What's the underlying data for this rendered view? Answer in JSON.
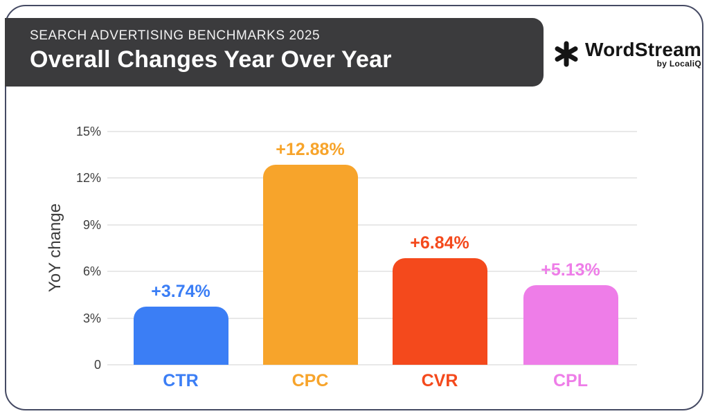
{
  "header": {
    "kicker": "SEARCH ADVERTISING BENCHMARKS 2025",
    "title": "Overall Changes Year Over Year"
  },
  "logo": {
    "icon": "asterisk-icon",
    "brand": "WordStream",
    "byline": "by LocaliQ"
  },
  "chart_data": {
    "type": "bar",
    "categories": [
      "CTR",
      "CPC",
      "CVR",
      "CPL"
    ],
    "values": [
      3.74,
      12.88,
      6.84,
      5.13
    ],
    "value_labels": [
      "+3.74%",
      "+12.88%",
      "+6.84%",
      "+5.13%"
    ],
    "bar_colors": [
      "#3b7ef5",
      "#f7a42b",
      "#f4491c",
      "#ee7de8"
    ],
    "title": "Overall Changes Year Over Year",
    "xlabel": "",
    "ylabel": "YoY change",
    "ylim": [
      0,
      15
    ],
    "yticks": [
      0,
      3,
      6,
      9,
      12,
      15
    ],
    "ytick_labels": [
      "0",
      "3%",
      "6%",
      "9%",
      "12%",
      "15%"
    ],
    "grid": true,
    "legend": false
  },
  "colors": {
    "banner_bg": "#3b3b3d",
    "card_border": "#454a63",
    "gridline": "#e8e8e8",
    "tick_text": "#3d3d3d"
  }
}
